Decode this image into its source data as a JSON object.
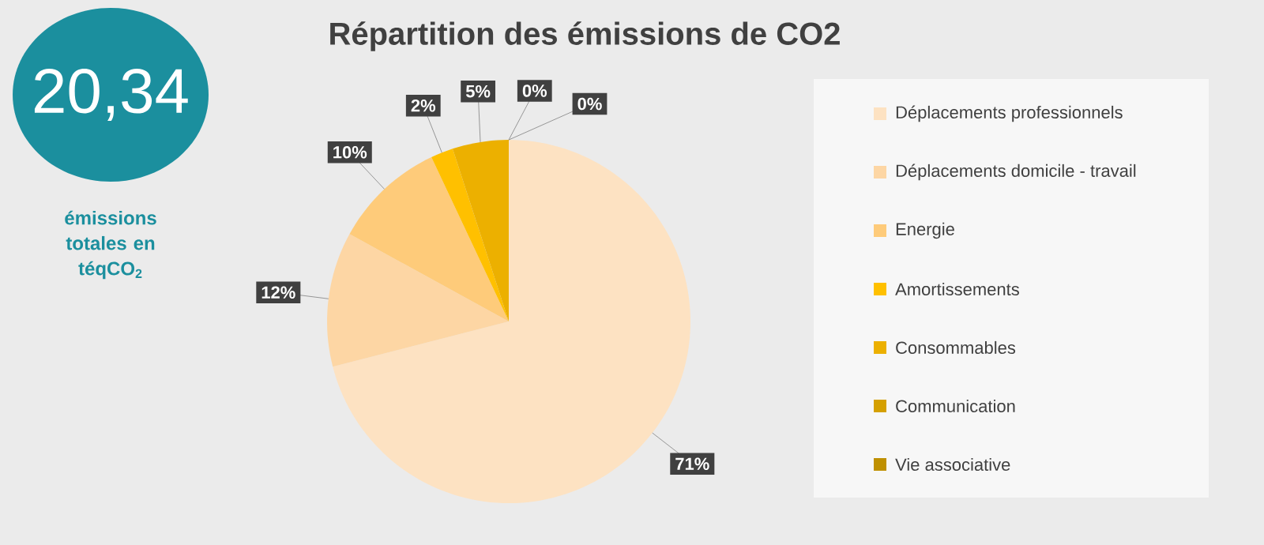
{
  "chart_data": {
    "type": "pie",
    "title": "Répartition des émissions de CO2",
    "categories": [
      "Déplacements professionnels",
      "Déplacements domicile - travail",
      "Energie",
      "Amortissements",
      "Consommables",
      "Communication",
      "Vie associative"
    ],
    "values": [
      71,
      12,
      10,
      2,
      5,
      0,
      0
    ],
    "colors": [
      "#fde2c2",
      "#fdd6a4",
      "#fecb7a",
      "#ffc000",
      "#ecb000",
      "#d5a000",
      "#bf9000"
    ],
    "value_labels": [
      "71%",
      "12%",
      "10%",
      "2%",
      "5%",
      "0%",
      "0%"
    ],
    "legend": "right",
    "annotations": [
      "20,34",
      "émissions totales en téqCO$_{2}$"
    ]
  }
}
